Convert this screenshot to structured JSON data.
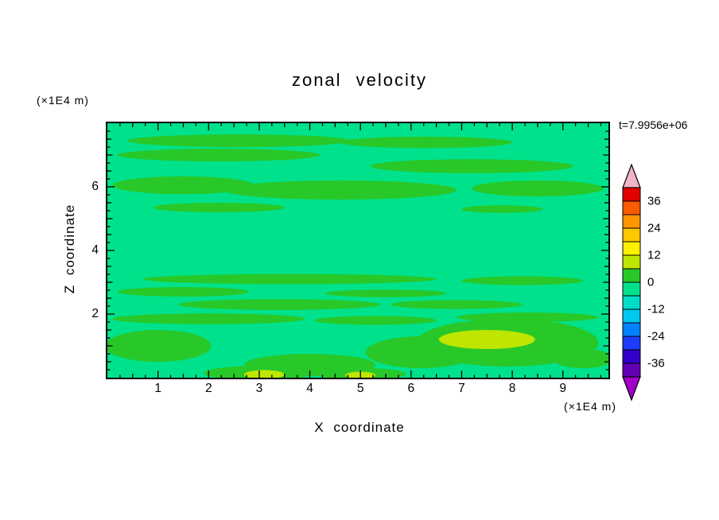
{
  "chart_data": {
    "type": "heatmap",
    "title": "zonal velocity",
    "timestamp": "t=7.9956e+06",
    "xlabel": "X coordinate",
    "ylabel": "Z coordinate",
    "x_unit": "(×1E4 m)",
    "y_unit": "(×1E4 m)",
    "xlim": [
      0,
      9.9
    ],
    "ylim": [
      0,
      8
    ],
    "x_ticks": [
      1,
      2,
      3,
      4,
      5,
      6,
      7,
      8,
      9
    ],
    "y_ticks": [
      2,
      4,
      6
    ],
    "tick_step": 0.25,
    "grid": false,
    "frame_color": "#000000",
    "colorbar": {
      "position": "right",
      "tick_labels": [
        "36",
        "24",
        "12",
        "0",
        "-12",
        "-24",
        "-36"
      ],
      "over_color": "#F2B4C8",
      "under_color": "#A000C8",
      "segments": [
        {
          "range": [
            42,
            36
          ],
          "color": "#E10000"
        },
        {
          "range": [
            36,
            30
          ],
          "color": "#FA5A00"
        },
        {
          "range": [
            30,
            24
          ],
          "color": "#FF9600"
        },
        {
          "range": [
            24,
            18
          ],
          "color": "#FFC800"
        },
        {
          "range": [
            18,
            12
          ],
          "color": "#FFF000"
        },
        {
          "range": [
            12,
            6
          ],
          "color": "#BEE600"
        },
        {
          "range": [
            6,
            0
          ],
          "color": "#28C828"
        },
        {
          "range": [
            0,
            -6
          ],
          "color": "#00E18C"
        },
        {
          "range": [
            -6,
            -12
          ],
          "color": "#00DCC8"
        },
        {
          "range": [
            -12,
            -18
          ],
          "color": "#00C8F0"
        },
        {
          "range": [
            -18,
            -24
          ],
          "color": "#0082FF"
        },
        {
          "range": [
            -24,
            -30
          ],
          "color": "#1E3CFF"
        },
        {
          "range": [
            -30,
            -36
          ],
          "color": "#3200C8"
        },
        {
          "range": [
            -36,
            -42
          ],
          "color": "#6400B4"
        }
      ]
    },
    "field": {
      "background_value": -3,
      "contour_interval": 6,
      "regions": [
        {
          "x": 2.6,
          "z": 7.45,
          "rx": 2.2,
          "rz": 0.2,
          "v": 3
        },
        {
          "x": 6.3,
          "z": 7.4,
          "rx": 1.7,
          "rz": 0.18,
          "v": 3
        },
        {
          "x": 2.2,
          "z": 7.0,
          "rx": 2.0,
          "rz": 0.2,
          "v": 3
        },
        {
          "x": 7.2,
          "z": 6.65,
          "rx": 2.0,
          "rz": 0.22,
          "v": 3
        },
        {
          "x": 1.5,
          "z": 6.05,
          "rx": 1.4,
          "rz": 0.28,
          "v": 3
        },
        {
          "x": 4.6,
          "z": 5.9,
          "rx": 2.3,
          "rz": 0.3,
          "v": 3
        },
        {
          "x": 8.5,
          "z": 5.95,
          "rx": 1.3,
          "rz": 0.25,
          "v": 3
        },
        {
          "x": 2.2,
          "z": 5.35,
          "rx": 1.3,
          "rz": 0.15,
          "v": 3
        },
        {
          "x": 7.8,
          "z": 5.3,
          "rx": 0.8,
          "rz": 0.12,
          "v": 3
        },
        {
          "x": 3.6,
          "z": 3.1,
          "rx": 2.9,
          "rz": 0.16,
          "v": 3
        },
        {
          "x": 8.2,
          "z": 3.05,
          "rx": 1.2,
          "rz": 0.14,
          "v": 3
        },
        {
          "x": 1.5,
          "z": 2.7,
          "rx": 1.3,
          "rz": 0.15,
          "v": 3
        },
        {
          "x": 5.5,
          "z": 2.65,
          "rx": 1.2,
          "rz": 0.12,
          "v": 3
        },
        {
          "x": 3.4,
          "z": 2.3,
          "rx": 2.0,
          "rz": 0.17,
          "v": 3
        },
        {
          "x": 6.9,
          "z": 2.3,
          "rx": 1.3,
          "rz": 0.14,
          "v": 3
        },
        {
          "x": 2.0,
          "z": 1.85,
          "rx": 1.9,
          "rz": 0.17,
          "v": 3
        },
        {
          "x": 5.3,
          "z": 1.8,
          "rx": 1.2,
          "rz": 0.14,
          "v": 3
        },
        {
          "x": 8.3,
          "z": 1.9,
          "rx": 1.4,
          "rz": 0.15,
          "v": 3
        },
        {
          "x": 1.0,
          "z": 1.0,
          "rx": 1.05,
          "rz": 0.5,
          "v": 3
        },
        {
          "x": 7.9,
          "z": 1.1,
          "rx": 1.8,
          "rz": 0.75,
          "v": 3
        },
        {
          "x": 6.2,
          "z": 0.8,
          "rx": 1.1,
          "rz": 0.5,
          "v": 3
        },
        {
          "x": 4.0,
          "z": 0.4,
          "rx": 1.3,
          "rz": 0.35,
          "v": 3
        },
        {
          "x": 3.0,
          "z": 0.15,
          "rx": 1.1,
          "rz": 0.22,
          "v": 3
        },
        {
          "x": 5.0,
          "z": 0.12,
          "rx": 0.9,
          "rz": 0.18,
          "v": 3
        },
        {
          "x": 9.4,
          "z": 0.6,
          "rx": 0.6,
          "rz": 0.3,
          "v": 3
        },
        {
          "x": 7.5,
          "z": 1.2,
          "rx": 0.95,
          "rz": 0.3,
          "v": 9
        },
        {
          "x": 3.1,
          "z": 0.1,
          "rx": 0.4,
          "rz": 0.14,
          "v": 9
        },
        {
          "x": 5.0,
          "z": 0.08,
          "rx": 0.3,
          "rz": 0.11,
          "v": 9
        }
      ]
    }
  }
}
